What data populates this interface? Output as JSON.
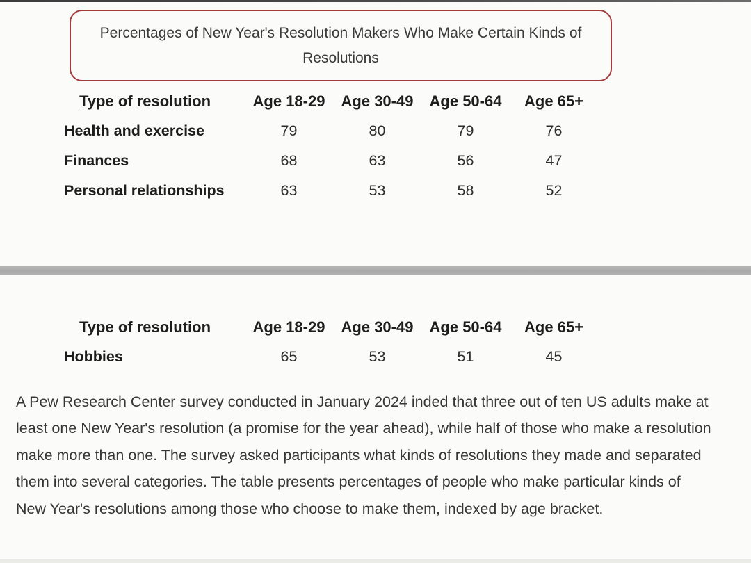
{
  "title_box": {
    "title": "Percentages of New Year's Resolution Makers Who Make Certain Kinds of Resolutions",
    "border_color": "#a33a3e"
  },
  "tables": [
    {
      "headers": [
        "Type of resolution",
        "Age 18-29",
        "Age 30-49",
        "Age 50-64",
        "Age 65+"
      ],
      "rows": [
        {
          "label": "Health and exercise",
          "values": [
            "79",
            "80",
            "79",
            "76"
          ]
        },
        {
          "label": "Finances",
          "values": [
            "68",
            "63",
            "56",
            "47"
          ]
        },
        {
          "label": "Personal relationships",
          "values": [
            "63",
            "53",
            "58",
            "52"
          ]
        }
      ]
    },
    {
      "headers": [
        "Type of resolution",
        "Age 18-29",
        "Age 30-49",
        "Age 50-64",
        "Age 65+"
      ],
      "rows": [
        {
          "label": "Hobbies",
          "values": [
            "65",
            "53",
            "51",
            "45"
          ]
        }
      ]
    }
  ],
  "paragraph": "A Pew Research Center survey conducted in January 2024 inded that three out of ten US adults make at least one New Year's resolution (a promise for the year ahead), while half of those who make a resolution make more than one. The survey asked participants what kinds of resolutions they made and separated them into several categories. The table presents percentages of people who make particular kinds of New Year's resolutions among those who choose to make them, indexed by age bracket.",
  "colors": {
    "title_border": "#a33a3e",
    "divider": "#ababab",
    "background": "#fbfbf9"
  }
}
